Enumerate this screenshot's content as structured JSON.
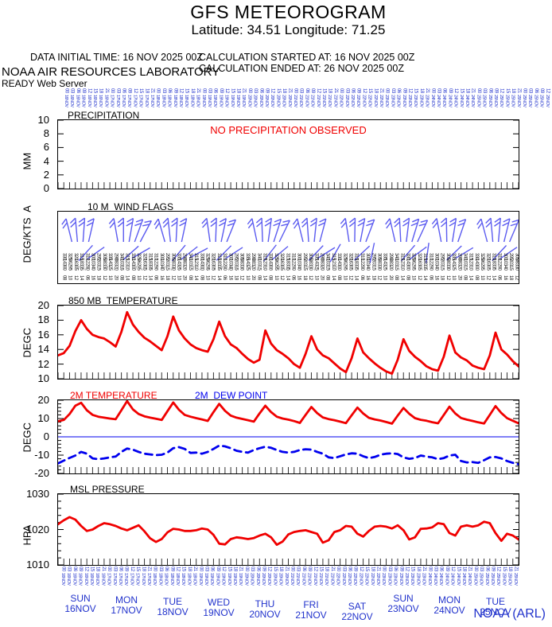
{
  "header": {
    "title": "GFS METEOROGRAM",
    "subtitle": "Latitude: 34.51 Longitude:  71.25",
    "data_initial_time": "DATA INITIAL TIME: 16 NOV 2025 00Z",
    "calc_started": "CALCULATION STARTED AT: 16 NOV 2025 00Z",
    "calc_ended": "CALCULATION ENDED AT: 26 NOV 2025 00Z",
    "org": "NOAA AIR RESOURCES LABORATORY",
    "server": "READY Web Server"
  },
  "footer": {
    "credit": "NOAA (ARL)"
  },
  "colors": {
    "red": "#f00000",
    "blue": "#0000ee",
    "barb_blue": "#5b5bf0",
    "label_blue": "#2233cc",
    "axis_black": "#000000",
    "tick_gray": "#333333",
    "slash_gray": "#999999"
  },
  "xaxis": {
    "hour_labels": [
      "00",
      "03",
      "06",
      "09",
      "12",
      "15",
      "18",
      "21"
    ],
    "days": [
      {
        "day": "SUN",
        "date": "16NOV"
      },
      {
        "day": "MON",
        "date": "17NOV"
      },
      {
        "day": "TUE",
        "date": "18NOV"
      },
      {
        "day": "WED",
        "date": "19NOV"
      },
      {
        "day": "THU",
        "date": "20NOV"
      },
      {
        "day": "FRI",
        "date": "21NOV"
      },
      {
        "day": "SAT",
        "date": "22NOV"
      },
      {
        "day": "SUN",
        "date": "23NOV"
      },
      {
        "day": "MON",
        "date": "24NOV"
      },
      {
        "day": "TUE",
        "date": "25NOV"
      }
    ]
  },
  "chart_data": [
    {
      "id": "precipitation",
      "type": "bar",
      "title": "PRECIPITATION",
      "ylabel": "MM",
      "ylim": [
        0,
        10
      ],
      "yticks": [
        0,
        2,
        4,
        6,
        8,
        10
      ],
      "annotation": "NO PRECIPITATION OBSERVED",
      "x_hours": {
        "start": 0,
        "end": 240,
        "step": 3
      },
      "values": []
    },
    {
      "id": "wind",
      "type": "wind-barbs",
      "title": "10 M  WIND FLAGS",
      "ylabel": "DEG/KTS  A",
      "clusters": [
        {
          "x_frac": 0.03,
          "angles": [
            -14,
            -5,
            4,
            13
          ]
        },
        {
          "x_frac": 0.13,
          "angles": [
            -10,
            0,
            10,
            20,
            28
          ]
        },
        {
          "x_frac": 0.232,
          "angles": [
            -16,
            -6,
            3,
            12
          ]
        },
        {
          "x_frac": 0.33,
          "angles": [
            -8,
            2,
            12,
            22
          ]
        },
        {
          "x_frac": 0.432,
          "angles": [
            -12,
            -2,
            8,
            18,
            26
          ]
        },
        {
          "x_frac": 0.532,
          "angles": [
            -14,
            -4,
            6,
            15
          ]
        },
        {
          "x_frac": 0.632,
          "angles": [
            -9,
            1,
            11,
            21
          ]
        },
        {
          "x_frac": 0.732,
          "angles": [
            -13,
            -3,
            7,
            17,
            25
          ]
        },
        {
          "x_frac": 0.832,
          "angles": [
            -11,
            -1,
            9,
            19
          ]
        },
        {
          "x_frac": 0.932,
          "angles": [
            -15,
            -5,
            5,
            14,
            23
          ]
        }
      ],
      "strokes": [
        {
          "x_frac": 0.06,
          "angle": 42
        },
        {
          "x_frac": 0.082,
          "angle": 55
        },
        {
          "x_frac": 0.158,
          "angle": 48
        },
        {
          "x_frac": 0.18,
          "angle": 60
        },
        {
          "x_frac": 0.262,
          "angle": 40
        },
        {
          "x_frac": 0.285,
          "angle": 52
        },
        {
          "x_frac": 0.305,
          "angle": 62
        },
        {
          "x_frac": 0.36,
          "angle": 45
        },
        {
          "x_frac": 0.382,
          "angle": 57
        },
        {
          "x_frac": 0.46,
          "angle": 38
        },
        {
          "x_frac": 0.482,
          "angle": 50
        },
        {
          "x_frac": 0.56,
          "angle": 44
        },
        {
          "x_frac": 0.582,
          "angle": 58
        },
        {
          "x_frac": 0.602,
          "angle": 30
        },
        {
          "x_frac": 0.66,
          "angle": 47
        },
        {
          "x_frac": 0.682,
          "angle": 12
        },
        {
          "x_frac": 0.76,
          "angle": 41
        },
        {
          "x_frac": 0.782,
          "angle": 54
        },
        {
          "x_frac": 0.802,
          "angle": 8
        },
        {
          "x_frac": 0.86,
          "angle": 46
        },
        {
          "x_frac": 0.882,
          "angle": 59
        },
        {
          "x_frac": 0.958,
          "angle": 43
        },
        {
          "x_frac": 0.978,
          "angle": 56
        }
      ],
      "value_rows": {
        "directions": [
          "330",
          "325",
          "320",
          "315",
          "310",
          "300",
          "295",
          "305",
          "335",
          "290",
          "340",
          "315"
        ],
        "speeds": [
          "08",
          "10",
          "12",
          "14",
          "06",
          "16",
          "18",
          "12",
          "10",
          "20",
          "08",
          "14"
        ]
      }
    },
    {
      "id": "temp850",
      "type": "line",
      "title": "850 MB  TEMPERATURE",
      "ylabel": "DEGC",
      "ylim": [
        10,
        20
      ],
      "yticks": [
        10,
        12,
        14,
        16,
        18,
        20
      ],
      "x_hours": {
        "start": 0,
        "end": 240,
        "step": 3
      },
      "series": [
        {
          "name": "850 mb temperature",
          "color": "red",
          "style": "solid",
          "values": [
            13.2,
            13.5,
            14.5,
            16.5,
            18.0,
            16.8,
            16.0,
            15.7,
            15.5,
            15.0,
            14.4,
            16.4,
            19.1,
            17.4,
            16.4,
            15.6,
            15.1,
            14.5,
            13.9,
            15.8,
            18.5,
            16.6,
            15.5,
            14.7,
            14.2,
            13.9,
            13.7,
            15.4,
            17.8,
            15.8,
            14.7,
            14.2,
            13.4,
            12.7,
            12.2,
            12.6,
            16.6,
            14.8,
            13.9,
            13.4,
            12.8,
            12.0,
            11.5,
            13.4,
            15.8,
            14.0,
            13.2,
            12.8,
            12.1,
            11.4,
            10.9,
            12.8,
            15.5,
            13.6,
            12.8,
            12.1,
            11.5,
            11.0,
            10.7,
            12.6,
            15.4,
            13.8,
            13.0,
            12.4,
            11.7,
            11.3,
            11.1,
            13.0,
            15.9,
            13.6,
            12.9,
            12.5,
            11.8,
            11.5,
            11.3,
            13.2,
            16.3,
            14.0,
            13.3,
            12.4,
            11.7
          ]
        }
      ]
    },
    {
      "id": "temp2m",
      "type": "line",
      "title_left": "2M TEMPERATURE",
      "title_right": "2M  DEW POINT",
      "ylabel": "DEGC",
      "ylim": [
        -20,
        20
      ],
      "yticks": [
        -20,
        -10,
        0,
        10,
        20
      ],
      "zero_line": true,
      "x_hours": {
        "start": 0,
        "end": 240,
        "step": 3
      },
      "series": [
        {
          "name": "2m temperature",
          "color": "red",
          "style": "solid",
          "values": [
            8.5,
            9.2,
            12.5,
            17.0,
            18.6,
            14.5,
            12.0,
            11.0,
            10.5,
            10.0,
            9.6,
            14.5,
            19.5,
            15.0,
            12.5,
            11.2,
            10.5,
            9.9,
            9.2,
            14.0,
            18.8,
            14.8,
            12.0,
            11.0,
            10.2,
            9.5,
            8.7,
            13.5,
            18.0,
            14.2,
            11.6,
            10.5,
            9.8,
            9.1,
            8.3,
            12.8,
            17.0,
            13.5,
            11.0,
            10.0,
            9.4,
            8.6,
            7.6,
            12.0,
            16.3,
            13.0,
            10.6,
            9.7,
            9.1,
            8.3,
            7.5,
            11.8,
            16.0,
            12.8,
            10.4,
            9.5,
            8.9,
            8.1,
            7.2,
            11.6,
            15.8,
            12.6,
            10.2,
            9.3,
            8.8,
            8.0,
            7.4,
            11.9,
            16.5,
            12.8,
            10.3,
            9.4,
            8.7,
            7.9,
            7.3,
            12.0,
            16.8,
            13.0,
            10.2,
            8.8,
            7.4
          ]
        },
        {
          "name": "2m dew point",
          "color": "blue",
          "style": "dashed",
          "values": [
            -14.5,
            -13.0,
            -11.5,
            -10.2,
            -8.2,
            -9.2,
            -11.8,
            -12.2,
            -11.8,
            -11.2,
            -10.8,
            -8.2,
            -6.4,
            -7.0,
            -8.2,
            -9.2,
            -9.6,
            -10.0,
            -9.8,
            -8.6,
            -6.2,
            -5.6,
            -6.6,
            -8.8,
            -8.6,
            -9.2,
            -8.2,
            -6.6,
            -4.8,
            -5.2,
            -6.2,
            -7.6,
            -8.2,
            -8.6,
            -7.2,
            -6.2,
            -5.4,
            -6.0,
            -7.2,
            -8.2,
            -8.6,
            -8.2,
            -7.2,
            -6.8,
            -7.0,
            -8.2,
            -9.2,
            -11.2,
            -11.6,
            -10.6,
            -9.6,
            -9.0,
            -9.2,
            -10.6,
            -11.6,
            -11.0,
            -9.8,
            -9.2,
            -9.0,
            -9.4,
            -11.2,
            -12.0,
            -11.6,
            -10.2,
            -10.8,
            -11.2,
            -12.2,
            -11.6,
            -10.2,
            -9.8,
            -13.2,
            -14.0,
            -13.8,
            -14.2,
            -12.8,
            -11.2,
            -11.0,
            -11.8,
            -13.2,
            -14.2,
            -15.0
          ]
        }
      ]
    },
    {
      "id": "pressure",
      "type": "line",
      "title": "MSL PRESSURE",
      "ylabel": "HPA",
      "ylim": [
        1010,
        1030
      ],
      "yticks": [
        1010,
        1020,
        1030
      ],
      "x_hours": {
        "start": 0,
        "end": 240,
        "step": 3
      },
      "series": [
        {
          "name": "msl pressure",
          "color": "red",
          "style": "solid",
          "values": [
            1021.5,
            1022.6,
            1023.5,
            1022.8,
            1021.0,
            1019.6,
            1020.0,
            1021.0,
            1021.8,
            1021.5,
            1021.0,
            1020.3,
            1019.8,
            1020.5,
            1021.2,
            1019.5,
            1017.5,
            1016.5,
            1017.3,
            1019.2,
            1020.2,
            1020.0,
            1019.6,
            1019.6,
            1019.8,
            1020.3,
            1020.0,
            1018.5,
            1016.0,
            1015.8,
            1017.3,
            1017.8,
            1017.6,
            1017.3,
            1017.6,
            1018.3,
            1018.8,
            1017.8,
            1015.7,
            1016.6,
            1018.6,
            1019.3,
            1019.6,
            1019.8,
            1019.3,
            1018.8,
            1016.3,
            1017.0,
            1019.3,
            1019.8,
            1021.0,
            1020.8,
            1018.8,
            1018.0,
            1019.6,
            1020.8,
            1021.0,
            1020.8,
            1020.3,
            1021.2,
            1019.8,
            1017.2,
            1017.8,
            1020.2,
            1020.3,
            1020.6,
            1021.8,
            1021.5,
            1019.0,
            1018.3,
            1020.8,
            1021.2,
            1020.8,
            1021.2,
            1022.2,
            1021.8,
            1019.0,
            1016.8,
            1018.8,
            1018.3,
            1017.2
          ]
        }
      ]
    }
  ]
}
